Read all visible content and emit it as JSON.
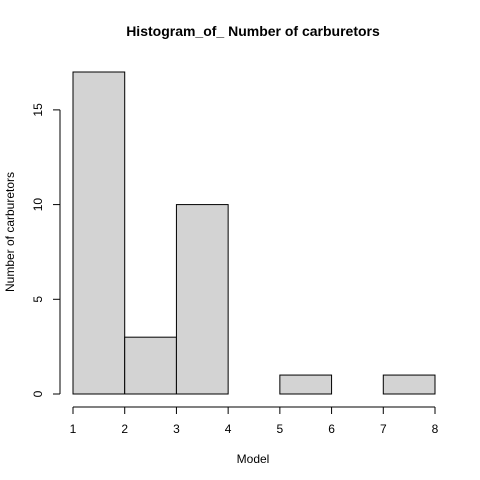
{
  "chart_data": {
    "type": "bar",
    "subtype": "histogram",
    "title": "Histogram_of_ Number of carburetors",
    "xlabel": "Model",
    "ylabel": "Number of carburetors",
    "bins": [
      {
        "start": 1,
        "end": 2,
        "count": 17
      },
      {
        "start": 2,
        "end": 3,
        "count": 3
      },
      {
        "start": 3,
        "end": 4,
        "count": 10
      },
      {
        "start": 4,
        "end": 5,
        "count": 0
      },
      {
        "start": 5,
        "end": 6,
        "count": 1
      },
      {
        "start": 6,
        "end": 7,
        "count": 0
      },
      {
        "start": 7,
        "end": 8,
        "count": 1
      }
    ],
    "xlim": [
      1,
      8
    ],
    "ylim": [
      0,
      17
    ],
    "x_ticks": [
      "1",
      "2",
      "3",
      "4",
      "5",
      "6",
      "7",
      "8"
    ],
    "y_ticks": [
      "0",
      "5",
      "10",
      "15"
    ],
    "grid": false,
    "bar_color": "#d3d3d3",
    "edge_color": "#000000"
  }
}
